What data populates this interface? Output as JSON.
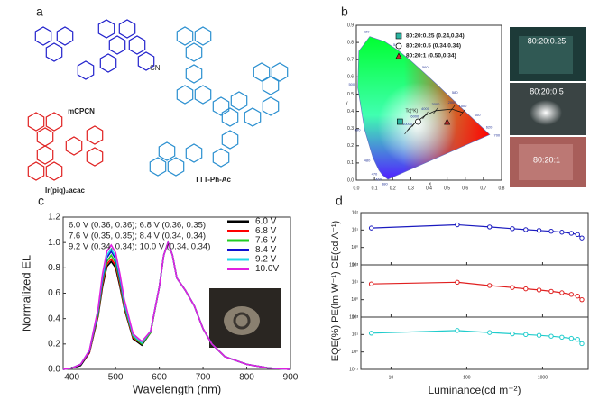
{
  "panel_labels": [
    "a",
    "b",
    "c",
    "d"
  ],
  "molecules": [
    {
      "name": "mCPCN",
      "group": "CN"
    },
    {
      "name": "Ir(piq)₂acac"
    },
    {
      "name": "TTT-Ph-Ac"
    }
  ],
  "photos": [
    "80:20:0.25",
    "80:20:0.5",
    "80:20:1"
  ],
  "chart_data": [
    {
      "type": "cie",
      "xlabel": "x",
      "ylabel": "y",
      "xlim": [
        0,
        0.8
      ],
      "ylim": [
        0,
        0.9
      ],
      "xticks": [
        {
          "value": 0,
          "label": "0.0"
        },
        0.1,
        0.2,
        0.3,
        0.4,
        0.5,
        0.6,
        0.7,
        0.8
      ],
      "yticks": [
        {
          "value": 0,
          "label": "0.0"
        },
        0.1,
        0.2,
        0.3,
        0.4,
        0.5,
        0.6,
        0.7,
        0.8,
        0.9
      ],
      "series": [
        {
          "name": "80:20:0.25 (0.24,0.34)",
          "color": "#2bb3a0",
          "marker": "square",
          "x": [
            0.24
          ],
          "values": [
            0.34
          ]
        },
        {
          "name": "80:20:0.5  (0.34,0.34)",
          "color": "#ffffff",
          "marker": "circle",
          "x": [
            0.34
          ],
          "values": [
            0.34
          ]
        },
        {
          "name": "80:20:1    (0.50,0.34)",
          "color": "#c0282a",
          "marker": "triangle",
          "x": [
            0.5
          ],
          "values": [
            0.34
          ]
        }
      ],
      "spectral_locus": [
        {
          "label": 380,
          "x": 0.174,
          "y": 0.005
        },
        {
          "label": 460,
          "x": 0.144,
          "y": 0.03
        },
        {
          "label": 470,
          "x": 0.124,
          "y": 0.058
        },
        {
          "label": 480,
          "x": 0.091,
          "y": 0.133
        },
        {
          "label": 490,
          "x": 0.045,
          "y": 0.295
        },
        {
          "label": 500,
          "x": 0.008,
          "y": 0.538
        },
        {
          "x": 0.014,
          "y": 0.75
        },
        {
          "label": 520,
          "x": 0.074,
          "y": 0.834
        },
        {
          "x": 0.155,
          "y": 0.806
        },
        {
          "label": 540,
          "x": 0.23,
          "y": 0.754
        },
        {
          "x": 0.302,
          "y": 0.692
        },
        {
          "label": 560,
          "x": 0.373,
          "y": 0.624
        },
        {
          "x": 0.444,
          "y": 0.555
        },
        {
          "label": 580,
          "x": 0.512,
          "y": 0.487
        },
        {
          "x": 0.575,
          "y": 0.424
        },
        {
          "label": 600,
          "x": 0.627,
          "y": 0.372
        },
        {
          "label": 620,
          "x": 0.691,
          "y": 0.308
        },
        {
          "label": 700,
          "x": 0.735,
          "y": 0.265
        }
      ],
      "planckian": {
        "label": "Tc(°K)",
        "points": [
          {
            "label": 10000,
            "x": 0.281,
            "y": 0.288
          },
          {
            "label": 6000,
            "x": 0.322,
            "y": 0.332
          },
          {
            "label": 4000,
            "x": 0.38,
            "y": 0.377
          },
          {
            "label": 3000,
            "x": 0.437,
            "y": 0.404
          },
          {
            "label": 2000,
            "x": 0.527,
            "y": 0.413
          },
          {
            "label": 1500,
            "x": 0.586,
            "y": 0.393
          }
        ]
      }
    },
    {
      "type": "line",
      "xlabel": "Wavelength (nm)",
      "ylabel": "Normalized EL",
      "xlim": [
        380,
        900
      ],
      "ylim": [
        0,
        1.2
      ],
      "xticks": [
        400,
        500,
        600,
        700,
        800,
        900
      ],
      "yticks": [
        {
          "value": 0,
          "label": "0.0"
        },
        0.2,
        0.4,
        0.6,
        0.8,
        {
          "value": 1,
          "label": "1.0"
        },
        1.2
      ],
      "annotations": [
        "6.0 V (0.36, 0.36); 6.8 V  (0.36, 0.35)",
        "7.6 V (0.35, 0.35); 8.4 V  (0.34, 0.34)",
        "9.2 V (0.34, 0.34); 10.0 V (0.34, 0.34)"
      ],
      "x": [
        380,
        400,
        420,
        440,
        460,
        470,
        480,
        490,
        500,
        510,
        520,
        540,
        560,
        580,
        600,
        610,
        620,
        630,
        640,
        660,
        680,
        700,
        720,
        750,
        800,
        850,
        900
      ],
      "series": [
        {
          "name": "6.0 V",
          "color": "#000000",
          "values": [
            0,
            0.01,
            0.03,
            0.13,
            0.42,
            0.65,
            0.81,
            0.85,
            0.8,
            0.65,
            0.48,
            0.24,
            0.19,
            0.29,
            0.65,
            0.9,
            1.0,
            0.9,
            0.72,
            0.62,
            0.5,
            0.32,
            0.2,
            0.1,
            0.04,
            0.01,
            0
          ]
        },
        {
          "name": "6.8 V",
          "color": "#ff0000",
          "values": [
            0,
            0.01,
            0.04,
            0.13,
            0.43,
            0.67,
            0.83,
            0.87,
            0.82,
            0.67,
            0.49,
            0.25,
            0.2,
            0.29,
            0.65,
            0.9,
            1.0,
            0.9,
            0.72,
            0.62,
            0.5,
            0.32,
            0.2,
            0.1,
            0.04,
            0.01,
            0
          ]
        },
        {
          "name": "7.6 V",
          "color": "#22cc22",
          "values": [
            0,
            0.01,
            0.04,
            0.14,
            0.44,
            0.69,
            0.85,
            0.9,
            0.84,
            0.69,
            0.5,
            0.26,
            0.2,
            0.29,
            0.65,
            0.9,
            1.0,
            0.9,
            0.72,
            0.62,
            0.5,
            0.32,
            0.2,
            0.1,
            0.04,
            0.01,
            0
          ]
        },
        {
          "name": "8.4 V",
          "color": "#1010d0",
          "values": [
            0,
            0.01,
            0.04,
            0.14,
            0.46,
            0.71,
            0.88,
            0.93,
            0.87,
            0.71,
            0.52,
            0.27,
            0.21,
            0.3,
            0.65,
            0.9,
            1.0,
            0.9,
            0.72,
            0.62,
            0.5,
            0.32,
            0.2,
            0.1,
            0.04,
            0.01,
            0
          ]
        },
        {
          "name": "9.2 V",
          "color": "#22d8e8",
          "values": [
            0,
            0.01,
            0.04,
            0.15,
            0.47,
            0.73,
            0.9,
            0.95,
            0.89,
            0.73,
            0.53,
            0.27,
            0.21,
            0.3,
            0.65,
            0.9,
            1.0,
            0.9,
            0.72,
            0.62,
            0.5,
            0.32,
            0.2,
            0.1,
            0.04,
            0.01,
            0
          ]
        },
        {
          "name": "10.0V",
          "color": "#e020e0",
          "values": [
            0,
            0.01,
            0.04,
            0.15,
            0.48,
            0.75,
            0.93,
            0.98,
            0.92,
            0.75,
            0.55,
            0.28,
            0.22,
            0.3,
            0.65,
            0.9,
            1.0,
            0.9,
            0.72,
            0.62,
            0.5,
            0.32,
            0.2,
            0.1,
            0.04,
            0.01,
            0
          ]
        }
      ]
    },
    {
      "type": "logline",
      "ylabel": "EQE(%) PE(lm W⁻¹) CE(cd A⁻¹)",
      "log_x": true,
      "log_y": true,
      "show_xtick_labels": false,
      "xlim": [
        4,
        4000
      ],
      "ylim": [
        0.1,
        100
      ],
      "xticks": [
        10,
        100,
        1000
      ],
      "yticks": [
        {
          "value": 0.1,
          "label": "10⁻¹"
        },
        {
          "value": 1,
          "label": "10⁰"
        },
        {
          "value": 10,
          "label": "10¹"
        },
        {
          "value": 100,
          "label": "10²"
        }
      ],
      "series": [
        {
          "color": "#1a1abf",
          "x": [
            5.5,
            75,
            200,
            400,
            600,
            900,
            1300,
            1800,
            2400,
            2900,
            3300
          ],
          "values": [
            13,
            20,
            15,
            12,
            10.5,
            9.5,
            8.5,
            7.5,
            6.5,
            5.5,
            3.5
          ]
        }
      ]
    },
    {
      "type": "logline",
      "log_x": true,
      "log_y": true,
      "show_xtick_labels": false,
      "xlim": [
        4,
        4000
      ],
      "ylim": [
        0.1,
        100
      ],
      "xticks": [
        10,
        100,
        1000
      ],
      "yticks": [
        {
          "value": 0.1,
          "label": "10⁻¹"
        },
        {
          "value": 1,
          "label": "10⁰"
        },
        {
          "value": 10,
          "label": "10¹"
        },
        {
          "value": 100,
          "label": "10²"
        }
      ],
      "series": [
        {
          "color": "#e02020",
          "x": [
            5.5,
            75,
            200,
            400,
            600,
            900,
            1300,
            1800,
            2400,
            2900,
            3300
          ],
          "values": [
            8,
            10,
            6.5,
            5,
            4.2,
            3.6,
            3,
            2.5,
            2,
            1.6,
            1
          ]
        }
      ]
    },
    {
      "type": "logline",
      "xlabel": "Luminance(cd m⁻²)",
      "log_x": true,
      "log_y": true,
      "show_xtick_labels": true,
      "xlim": [
        4,
        4000
      ],
      "ylim": [
        0.1,
        100
      ],
      "xticks": [
        10,
        100,
        1000
      ],
      "yticks": [
        {
          "value": 0.1,
          "label": "10⁻¹"
        },
        {
          "value": 1,
          "label": "10⁰"
        },
        {
          "value": 10,
          "label": "10¹"
        },
        {
          "value": 100,
          "label": "10²"
        }
      ],
      "series": [
        {
          "color": "#20cccc",
          "x": [
            5.5,
            75,
            200,
            400,
            600,
            900,
            1300,
            1800,
            2400,
            2900,
            3300
          ],
          "values": [
            12,
            17,
            13,
            11,
            10,
            9,
            8,
            7,
            6,
            5.3,
            3
          ]
        }
      ]
    }
  ]
}
